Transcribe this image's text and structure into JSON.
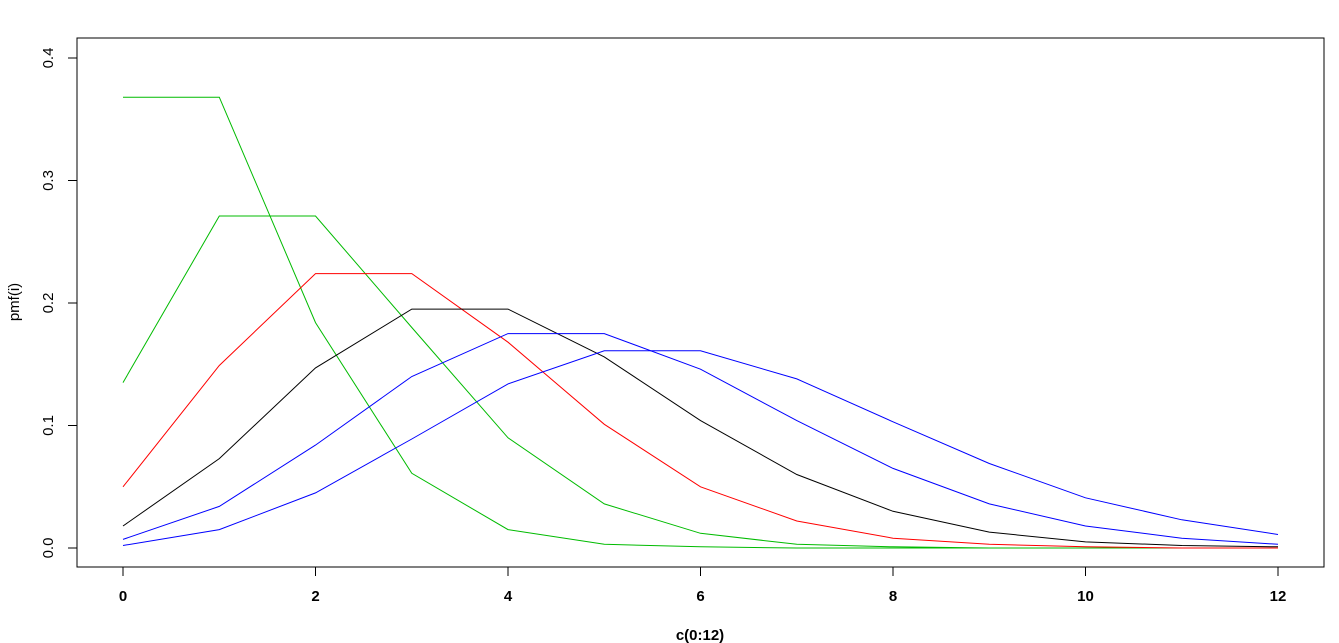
{
  "chart_data": {
    "type": "line",
    "title": "",
    "xlabel": "c(0:12)",
    "ylabel": "pmf(i)",
    "xlim": [
      0,
      12
    ],
    "ylim": [
      0,
      0.4
    ],
    "x": [
      0,
      1,
      2,
      3,
      4,
      5,
      6,
      7,
      8,
      9,
      10,
      11,
      12
    ],
    "x_ticks": [
      "0",
      "2",
      "4",
      "6",
      "8",
      "10",
      "12"
    ],
    "y_ticks": [
      "0.0",
      "0.1",
      "0.2",
      "0.3",
      "0.4"
    ],
    "grid": false,
    "legend": "none",
    "series": [
      {
        "color": "#00bb00",
        "values": [
          0.368,
          0.368,
          0.184,
          0.061,
          0.015,
          0.003,
          0.001,
          0.0,
          0.0,
          0.0,
          0.0,
          0.0,
          0.0
        ]
      },
      {
        "color": "#00bb00",
        "values": [
          0.135,
          0.271,
          0.271,
          0.18,
          0.09,
          0.036,
          0.012,
          0.003,
          0.001,
          0.0,
          0.0,
          0.0,
          0.0
        ]
      },
      {
        "color": "#ff0000",
        "values": [
          0.05,
          0.149,
          0.224,
          0.224,
          0.168,
          0.101,
          0.05,
          0.022,
          0.008,
          0.003,
          0.001,
          0.0,
          0.0
        ]
      },
      {
        "color": "#000000",
        "values": [
          0.018,
          0.073,
          0.147,
          0.195,
          0.195,
          0.156,
          0.104,
          0.06,
          0.03,
          0.013,
          0.005,
          0.002,
          0.001
        ]
      },
      {
        "color": "#0000ff",
        "values": [
          0.007,
          0.034,
          0.084,
          0.14,
          0.175,
          0.175,
          0.146,
          0.104,
          0.065,
          0.036,
          0.018,
          0.008,
          0.003
        ]
      },
      {
        "color": "#0000ff",
        "values": [
          0.002,
          0.015,
          0.045,
          0.089,
          0.134,
          0.161,
          0.161,
          0.138,
          0.103,
          0.069,
          0.041,
          0.023,
          0.011
        ]
      }
    ]
  }
}
